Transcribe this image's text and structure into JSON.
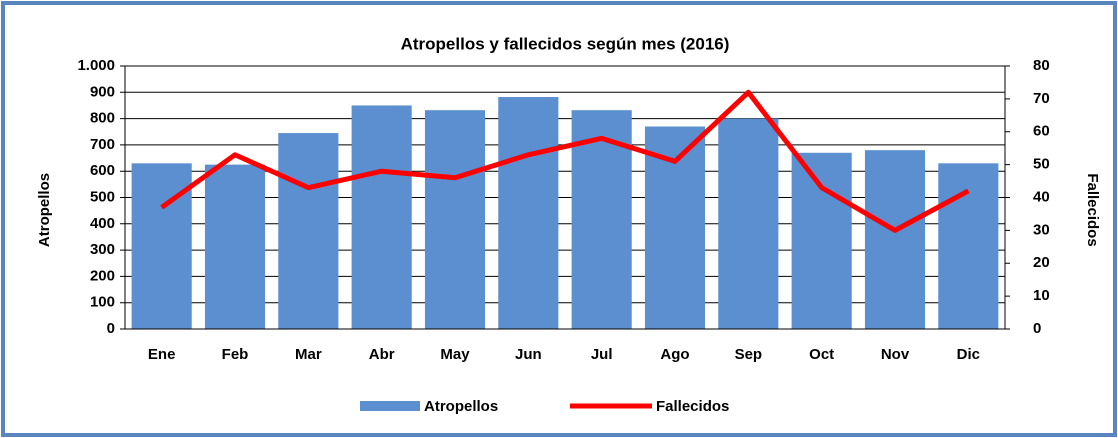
{
  "chart_data": {
    "type": "bar-line",
    "title": "Atropellos y fallecidos según mes (2016)",
    "categories": [
      "Ene",
      "Feb",
      "Mar",
      "Abr",
      "May",
      "Jun",
      "Jul",
      "Ago",
      "Sep",
      "Oct",
      "Nov",
      "Dic"
    ],
    "ylabel": "Atropellos",
    "y2label": "Fallecidos",
    "series": [
      {
        "name": "Atropellos",
        "color": "#5b8fd0",
        "values": [
          630,
          625,
          745,
          850,
          832,
          882,
          832,
          770,
          800,
          670,
          680,
          630
        ]
      },
      {
        "name": "Fallecidos",
        "color": "#ff0000",
        "axis": "y2",
        "values": [
          37,
          53,
          43,
          48,
          46,
          53,
          58,
          51,
          72,
          43,
          30,
          42
        ]
      }
    ],
    "ylim": [
      0,
      1000
    ],
    "yticks": [
      0,
      100,
      200,
      300,
      400,
      500,
      600,
      700,
      800,
      900,
      {
        "value": 1000,
        "label": "1.000"
      }
    ],
    "y2lim": [
      0,
      80
    ],
    "y2ticks": [
      0,
      10,
      20,
      30,
      40,
      50,
      60,
      70,
      80
    ],
    "legend": "bottom"
  }
}
